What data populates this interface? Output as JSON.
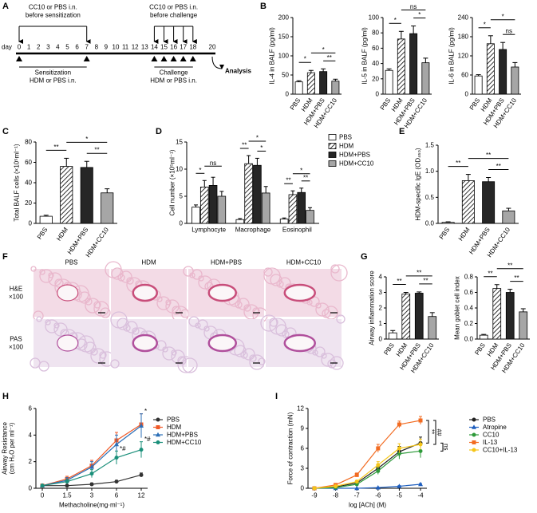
{
  "panel_labels": [
    "A",
    "B",
    "C",
    "D",
    "E",
    "F",
    "G",
    "H",
    "I"
  ],
  "timeline": {
    "top_left": [
      "CC10 or PBS i.n.",
      "before sensitization"
    ],
    "top_right": [
      "CC10 or PBS i.n.",
      "before challenge"
    ],
    "day_label": "day",
    "days": [
      0,
      1,
      2,
      3,
      4,
      5,
      6,
      7,
      8,
      9,
      10,
      11,
      12,
      13,
      14,
      15,
      16,
      17,
      18,
      20
    ],
    "arrow_days": [
      0,
      7,
      14,
      15,
      16,
      17,
      18
    ],
    "triangle_days": [
      0,
      7,
      14,
      15,
      16,
      17,
      18
    ],
    "bottom_left": [
      "Sensitization",
      "HDM or PBS i.n."
    ],
    "bottom_right": [
      "Challenge",
      "HDM or PBS i.n."
    ],
    "end": "Analysis"
  },
  "histology": {
    "columns": [
      "PBS",
      "HDM",
      "HDM+PBS",
      "HDM+CC10"
    ],
    "rows": [
      [
        "H&E",
        "×100"
      ],
      [
        "PAS",
        "×100"
      ]
    ]
  },
  "chart_data": [
    {
      "type": "bar",
      "ylabel": "IL-4 in BALF (pg/ml)",
      "categories": [
        "PBS",
        "HDM",
        "HDM+PBS",
        "HDM+CC10"
      ],
      "values": [
        32,
        56,
        59,
        34
      ],
      "errors": [
        3,
        6,
        7,
        5
      ],
      "colors": [
        "#ffffff",
        "#ffffff",
        "#262626",
        "#a6a6a6"
      ],
      "patterns": [
        "solid",
        "hatch",
        "solid",
        "solid"
      ],
      "ylim": [
        0,
        200
      ],
      "yticks": [
        0,
        50,
        100,
        150,
        200
      ],
      "comparisons": [
        {
          "groups": [
            "PBS",
            "HDM"
          ],
          "label": "*"
        },
        {
          "groups": [
            "HDM+PBS",
            "HDM+CC10"
          ],
          "label": "**"
        },
        {
          "groups": [
            "HDM",
            "HDM+CC10"
          ],
          "label": "*"
        }
      ]
    },
    {
      "type": "bar",
      "ylabel": "IL-5 in BALF (pg/ml)",
      "categories": [
        "PBS",
        "HDM",
        "HDM+PBS",
        "HDM+CC10"
      ],
      "values": [
        31,
        72,
        79,
        41
      ],
      "errors": [
        2,
        10,
        10,
        6
      ],
      "colors": [
        "#ffffff",
        "#ffffff",
        "#262626",
        "#a6a6a6"
      ],
      "patterns": [
        "solid",
        "hatch",
        "solid",
        "solid"
      ],
      "ylim": [
        0,
        100
      ],
      "yticks": [
        0,
        20,
        40,
        60,
        80,
        100
      ],
      "comparisons": [
        {
          "groups": [
            "PBS",
            "HDM"
          ],
          "label": "*"
        },
        {
          "groups": [
            "HDM+PBS",
            "HDM+CC10"
          ],
          "label": "*"
        },
        {
          "groups": [
            "HDM",
            "HDM+CC10"
          ],
          "label": "ns"
        }
      ]
    },
    {
      "type": "bar",
      "ylabel": "IL-6 in BALF (pg/ml)",
      "categories": [
        "PBS",
        "HDM",
        "HDM+PBS",
        "HDM+CC10"
      ],
      "values": [
        57,
        158,
        140,
        85
      ],
      "errors": [
        4,
        25,
        22,
        14
      ],
      "colors": [
        "#ffffff",
        "#ffffff",
        "#262626",
        "#a6a6a6"
      ],
      "patterns": [
        "solid",
        "hatch",
        "solid",
        "solid"
      ],
      "ylim": [
        0,
        240
      ],
      "yticks": [
        0,
        60,
        120,
        180,
        240
      ],
      "comparisons": [
        {
          "groups": [
            "PBS",
            "HDM"
          ],
          "label": "*"
        },
        {
          "groups": [
            "HDM+PBS",
            "HDM+CC10"
          ],
          "label": "ns"
        },
        {
          "groups": [
            "HDM",
            "HDM+CC10"
          ],
          "label": "*"
        }
      ]
    },
    {
      "type": "bar",
      "ylabel": "Total BALF cells (×10⁵ml⁻¹)",
      "categories": [
        "PBS",
        "HDM",
        "HDM+PBS",
        "HDM+CC10"
      ],
      "values": [
        7,
        56,
        55,
        30
      ],
      "errors": [
        1,
        8,
        6,
        4
      ],
      "colors": [
        "#ffffff",
        "#ffffff",
        "#262626",
        "#a6a6a6"
      ],
      "patterns": [
        "solid",
        "hatch",
        "solid",
        "solid"
      ],
      "ylim": [
        0,
        80
      ],
      "yticks": [
        0,
        20,
        40,
        60,
        80
      ],
      "comparisons": [
        {
          "groups": [
            "PBS",
            "HDM"
          ],
          "label": "**"
        },
        {
          "groups": [
            "HDM+PBS",
            "HDM+CC10"
          ],
          "label": "**"
        },
        {
          "groups": [
            "HDM",
            "HDM+CC10"
          ],
          "label": "*"
        }
      ]
    },
    {
      "type": "grouped_bar",
      "ylabel": "Cell number (×10⁵ml⁻¹)",
      "categories": [
        "Lymphocyte",
        "Macrophage",
        "Eosinophil"
      ],
      "series": [
        {
          "name": "PBS",
          "color": "#ffffff",
          "pattern": "solid",
          "values": [
            3,
            0.7,
            0.8
          ],
          "errors": [
            0.4,
            0.2,
            0.2
          ]
        },
        {
          "name": "HDM",
          "color": "#ffffff",
          "pattern": "hatch",
          "values": [
            6.7,
            11,
            5.3
          ],
          "errors": [
            1.2,
            1.5,
            0.7
          ]
        },
        {
          "name": "HDM+PBS",
          "color": "#262626",
          "pattern": "solid",
          "values": [
            7,
            10.7,
            5.7
          ],
          "errors": [
            1.5,
            1.3,
            0.8
          ]
        },
        {
          "name": "HDM+CC10",
          "color": "#a6a6a6",
          "pattern": "solid",
          "values": [
            5,
            5.6,
            2.4
          ],
          "errors": [
            0.9,
            1.2,
            0.5
          ]
        }
      ],
      "ylim": [
        0,
        15
      ],
      "yticks": [
        0,
        5,
        10,
        15
      ],
      "comparisons": [
        {
          "category": "Lymphocyte",
          "groups": [
            "PBS",
            "HDM"
          ],
          "label": "*"
        },
        {
          "category": "Lymphocyte",
          "groups": [
            "HDM",
            "HDM+CC10"
          ],
          "label": "ns"
        },
        {
          "category": "Macrophage",
          "groups": [
            "PBS",
            "HDM"
          ],
          "label": "**"
        },
        {
          "category": "Macrophage",
          "groups": [
            "HDM+PBS",
            "HDM+CC10"
          ],
          "label": "*"
        },
        {
          "category": "Macrophage",
          "groups": [
            "HDM",
            "HDM+CC10"
          ],
          "label": "*"
        },
        {
          "category": "Eosinophil",
          "groups": [
            "PBS",
            "HDM"
          ],
          "label": "**"
        },
        {
          "category": "Eosinophil",
          "groups": [
            "HDM+PBS",
            "HDM+CC10"
          ],
          "label": "**"
        },
        {
          "category": "Eosinophil",
          "groups": [
            "HDM",
            "HDM+CC10"
          ],
          "label": "*"
        }
      ]
    },
    {
      "type": "bar",
      "ylabel": "HDM-specific IgE (OD₄₅₀)",
      "categories": [
        "PBS",
        "HDM",
        "HDM+PBS",
        "HDM+CC10"
      ],
      "values": [
        0.02,
        0.82,
        0.8,
        0.24
      ],
      "errors": [
        0.01,
        0.12,
        0.08,
        0.05
      ],
      "colors": [
        "#ffffff",
        "#ffffff",
        "#262626",
        "#a6a6a6"
      ],
      "patterns": [
        "solid",
        "hatch",
        "solid",
        "solid"
      ],
      "ylim": [
        0,
        1.5
      ],
      "yticks": [
        {
          "value": 0,
          "label": "0.0"
        },
        0.5,
        {
          "value": 1,
          "label": "1.0"
        },
        1.5
      ],
      "comparisons": [
        {
          "groups": [
            "PBS",
            "HDM"
          ],
          "label": "**"
        },
        {
          "groups": [
            "HDM+PBS",
            "HDM+CC10"
          ],
          "label": "**"
        },
        {
          "groups": [
            "HDM",
            "HDM+CC10"
          ],
          "label": "**"
        }
      ]
    },
    {
      "type": "bar",
      "ylabel": "Airway inflammation score",
      "categories": [
        "PBS",
        "HDM",
        "HDM+PBS",
        "HDM+CC10"
      ],
      "values": [
        0.4,
        2.9,
        2.95,
        1.45
      ],
      "errors": [
        0.15,
        0.1,
        0.08,
        0.25
      ],
      "colors": [
        "#ffffff",
        "#ffffff",
        "#262626",
        "#a6a6a6"
      ],
      "patterns": [
        "solid",
        "hatch",
        "solid",
        "solid"
      ],
      "ylim": [
        0,
        4
      ],
      "yticks": [
        0,
        1,
        2,
        3,
        4
      ],
      "comparisons": [
        {
          "groups": [
            "PBS",
            "HDM"
          ],
          "label": "**"
        },
        {
          "groups": [
            "HDM+PBS",
            "HDM+CC10"
          ],
          "label": "**"
        },
        {
          "groups": [
            "HDM",
            "HDM+CC10"
          ],
          "label": "**"
        }
      ]
    },
    {
      "type": "bar",
      "ylabel": "Mean goblet cell index",
      "categories": [
        "PBS",
        "HDM",
        "HDM+PBS",
        "HDM+CC10"
      ],
      "values": [
        0.05,
        0.65,
        0.6,
        0.35
      ],
      "errors": [
        0.01,
        0.05,
        0.04,
        0.04
      ],
      "colors": [
        "#ffffff",
        "#ffffff",
        "#262626",
        "#a6a6a6"
      ],
      "patterns": [
        "solid",
        "hatch",
        "solid",
        "solid"
      ],
      "ylim": [
        0,
        0.8
      ],
      "yticks": [
        {
          "value": 0,
          "label": "0.0"
        },
        0.2,
        0.4,
        0.6,
        0.8
      ],
      "comparisons": [
        {
          "groups": [
            "PBS",
            "HDM"
          ],
          "label": "**"
        },
        {
          "groups": [
            "HDM+PBS",
            "HDM+CC10"
          ],
          "label": "**"
        },
        {
          "groups": [
            "HDM",
            "HDM+CC10"
          ],
          "label": "**"
        }
      ]
    },
    {
      "type": "line",
      "ylabel": [
        "Airway Resistance",
        "(cm H₂O per ml⁻¹)"
      ],
      "xlabel": "Methacholine(mg·ml⁻¹)",
      "categories": [
        "0",
        "1.5",
        "3",
        "6",
        "12"
      ],
      "series": [
        {
          "name": "PBS",
          "color": "#333333",
          "marker": "circle",
          "values": [
            0.2,
            0.2,
            0.3,
            0.5,
            1.0
          ],
          "errors": [
            0.05,
            0.05,
            0.1,
            0.1,
            0.15
          ]
        },
        {
          "name": "HDM",
          "color": "#f05a28",
          "marker": "square",
          "values": [
            0.2,
            0.7,
            1.7,
            3.6,
            4.8
          ],
          "errors": [
            0.05,
            0.2,
            0.4,
            0.6,
            0.8
          ]
        },
        {
          "name": "HDM+PBS",
          "color": "#2c6fb7",
          "marker": "triangle",
          "values": [
            0.2,
            0.6,
            1.6,
            3.3,
            4.7
          ],
          "errors": [
            0.05,
            0.2,
            0.4,
            0.7,
            0.9
          ]
        },
        {
          "name": "HDM+CC10",
          "color": "#1a8f7a",
          "marker": "circle",
          "values": [
            0.2,
            0.5,
            1.1,
            2.3,
            2.9
          ],
          "errors": [
            0.05,
            0.15,
            0.3,
            0.5,
            0.6
          ]
        }
      ],
      "ylim": [
        0,
        6
      ],
      "yticks": [
        0,
        2,
        4,
        6
      ],
      "annotations": [
        {
          "label": "*",
          "x": "12",
          "series": "HDM"
        },
        {
          "label": "*#",
          "x": "6",
          "series": "HDM+CC10"
        },
        {
          "label": "*#",
          "x": "12",
          "series": "HDM+CC10"
        }
      ]
    },
    {
      "type": "line_xy",
      "ylabel": "Force of contraction (mN)",
      "xlabel": "log [ACh] (M)",
      "x": [
        -9,
        -8,
        -7,
        -6,
        -5,
        -4
      ],
      "series": [
        {
          "name": "PBS",
          "color": "#222222",
          "marker": "circle",
          "values": [
            0,
            0.2,
            0.8,
            3,
            5.5,
            6.8
          ],
          "errors": [
            0,
            0.1,
            0.2,
            0.5,
            0.8,
            0.9
          ]
        },
        {
          "name": "Atropine",
          "color": "#1f5fbf",
          "marker": "triangle",
          "values": [
            0,
            0,
            0,
            0.1,
            0.3,
            0.6
          ],
          "errors": [
            0,
            0,
            0,
            0.05,
            0.1,
            0.1
          ]
        },
        {
          "name": "CC10",
          "color": "#2e9a3a",
          "marker": "circle",
          "values": [
            0,
            0.1,
            0.6,
            2.6,
            5.2,
            5.6
          ],
          "errors": [
            0,
            0.1,
            0.2,
            0.5,
            0.8,
            1.0
          ]
        },
        {
          "name": "IL-13",
          "color": "#f26b21",
          "marker": "square",
          "values": [
            0,
            0.5,
            2,
            6,
            9.6,
            10.2
          ],
          "errors": [
            0,
            0.1,
            0.3,
            0.6,
            0.5,
            0.6
          ]
        },
        {
          "name": "CC10+IL-13",
          "color": "#f5c518",
          "marker": "circle",
          "values": [
            0,
            0.3,
            1,
            3.5,
            6,
            6.6
          ],
          "errors": [
            0,
            0.1,
            0.2,
            0.5,
            0.7,
            0.8
          ]
        }
      ],
      "xlim": [
        -9.3,
        -3.7
      ],
      "xticks": [
        -9,
        -8,
        -7,
        -6,
        -5,
        -4
      ],
      "ylim": [
        0,
        12
      ],
      "yticks": [
        0,
        3,
        6,
        9,
        12
      ],
      "brackets": [
        {
          "series": [
            "IL-13",
            "PBS"
          ],
          "label": "**"
        },
        {
          "series": [
            "IL-13",
            "CC10+IL-13"
          ],
          "label": "##"
        },
        {
          "series": [
            "PBS",
            "CC10"
          ],
          "label": "ns"
        }
      ]
    }
  ]
}
